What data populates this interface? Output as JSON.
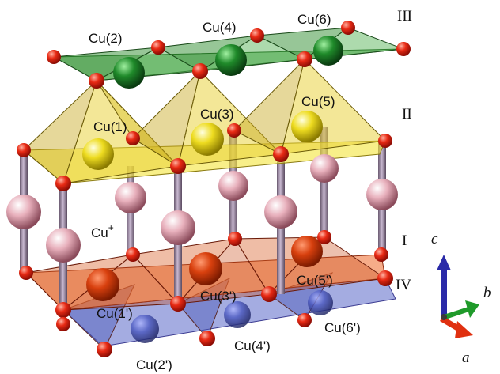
{
  "labels": {
    "cu2": "Cu(2)",
    "cu4": "Cu(4)",
    "cu6": "Cu(6)",
    "cu1": "Cu(1)",
    "cu3": "Cu(3)",
    "cu5": "Cu(5)",
    "cu_plus_base": "Cu",
    "cu_plus_sup": "+",
    "cu1p": "Cu(1')",
    "cu3p": "Cu(3')",
    "cu5p": "Cu(5')",
    "cu2p": "Cu(2')",
    "cu4p": "Cu(4')",
    "cu6p": "Cu(6')"
  },
  "layers": {
    "layer_iii": "III",
    "layer_ii": "II",
    "layer_i": "I",
    "layer_iv": "IV"
  },
  "axes": {
    "c": "c",
    "b": "b",
    "a": "a"
  },
  "colors": {
    "layer_iii": "#3f9e3f",
    "layer_ii": "#f4e43a",
    "layer_i": "#f0743a",
    "layer_iv": "#5a68c8",
    "oxygen": "#e02010",
    "cu_plus": "#e8b0bc",
    "axis_c": "#2a2aa8",
    "axis_b": "#1f9a2a",
    "axis_a": "#e03010"
  }
}
